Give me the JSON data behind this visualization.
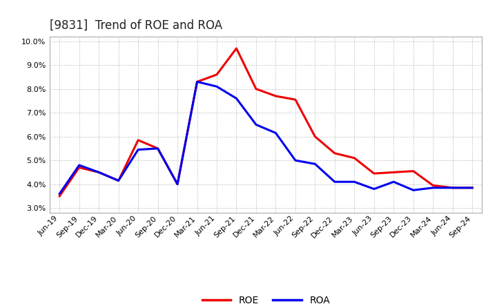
{
  "title": "[9831]  Trend of ROE and ROA",
  "x_labels": [
    "Jun-19",
    "Sep-19",
    "Dec-19",
    "Mar-20",
    "Jun-20",
    "Sep-20",
    "Dec-20",
    "Mar-21",
    "Jun-21",
    "Sep-21",
    "Dec-21",
    "Mar-22",
    "Jun-22",
    "Sep-22",
    "Dec-22",
    "Mar-23",
    "Jun-23",
    "Sep-23",
    "Dec-23",
    "Mar-24",
    "Jun-24",
    "Sep-24"
  ],
  "roe": [
    3.5,
    4.7,
    4.5,
    4.15,
    5.85,
    5.5,
    4.0,
    8.3,
    8.6,
    9.7,
    8.0,
    7.7,
    7.55,
    6.0,
    5.3,
    5.1,
    4.45,
    4.5,
    4.55,
    3.95,
    3.85,
    3.85
  ],
  "roa": [
    3.6,
    4.8,
    4.5,
    4.15,
    5.45,
    5.5,
    4.0,
    8.3,
    8.1,
    7.6,
    6.5,
    6.15,
    5.0,
    4.85,
    4.1,
    4.1,
    3.8,
    4.1,
    3.75,
    3.85,
    3.85,
    3.85
  ],
  "roe_color": "#ee0000",
  "roa_color": "#0000ee",
  "ylim": [
    2.8,
    10.2
  ],
  "yticks": [
    3.0,
    4.0,
    5.0,
    6.0,
    7.0,
    8.0,
    9.0,
    10.0
  ],
  "grid_color": "#999999",
  "bg_color": "#ffffff",
  "plot_bg_color": "#ffffff",
  "line_width": 2.2,
  "legend_labels": [
    "ROE",
    "ROA"
  ],
  "title_fontsize": 12,
  "tick_fontsize": 8,
  "legend_fontsize": 10
}
